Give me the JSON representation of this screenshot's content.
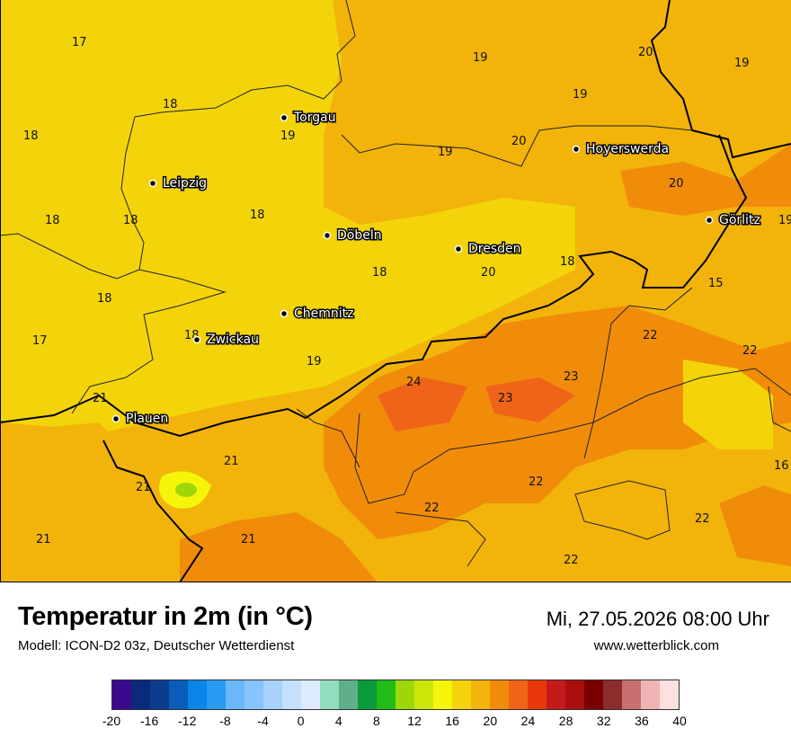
{
  "map": {
    "cities": [
      {
        "name": "Torgau"
      },
      {
        "name": "Leipzig"
      },
      {
        "name": "Döbeln"
      },
      {
        "name": "Dresden"
      },
      {
        "name": "Hoyerswerda"
      },
      {
        "name": "Görlitz"
      },
      {
        "name": "Chemnitz"
      },
      {
        "name": "Zwickau"
      },
      {
        "name": "Plauen"
      }
    ],
    "temperature_labels": [
      "17",
      "19",
      "20",
      "19",
      "18",
      "19",
      "18",
      "19",
      "19",
      "20",
      "20",
      "18",
      "18",
      "18",
      "19",
      "18",
      "18",
      "20",
      "15",
      "18",
      "22",
      "17",
      "22",
      "18",
      "23",
      "24",
      "19",
      "23",
      "21",
      "16",
      "21",
      "22",
      "22",
      "21",
      "21",
      "21",
      "22",
      "22"
    ]
  },
  "footer": {
    "title": "Temperatur in 2m (in °C)",
    "model": "Modell: ICON-D2 03z, Deutscher Wetterdienst",
    "datetime": "Mi, 27.05.2026 08:00 Uhr",
    "website": "www.wetterblick.com"
  },
  "legend": {
    "colors": [
      "#3b0a8c",
      "#0a2a7a",
      "#0b3d8c",
      "#0a5cb8",
      "#0a84e8",
      "#2a9af5",
      "#6ab8f8",
      "#88c4fa",
      "#a6d2fb",
      "#c4e0fc",
      "#dcebfd",
      "#92dcbf",
      "#5fb08a",
      "#0a9b3a",
      "#22bb1a",
      "#9dd70a",
      "#cce60a",
      "#f5f50a",
      "#f3d40a",
      "#f2b40a",
      "#f08c0a",
      "#f0641a",
      "#e8380a",
      "#c41a1a",
      "#aa0f0f",
      "#7a0000",
      "#8c2c2c",
      "#c87070",
      "#f0b4b4",
      "#fde0e0"
    ],
    "ticks": [
      "-20",
      "-16",
      "-12",
      "-8",
      "-4",
      "0",
      "4",
      "8",
      "12",
      "16",
      "20",
      "24",
      "28",
      "32",
      "36",
      "40"
    ]
  }
}
